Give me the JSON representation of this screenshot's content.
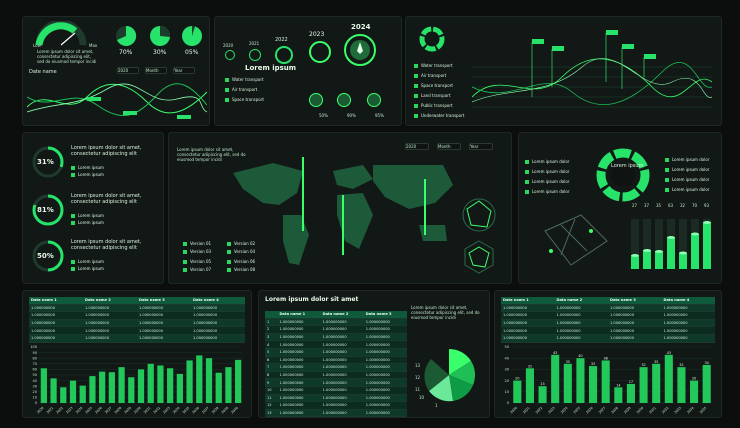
{
  "gauge": {
    "min": "Low",
    "max": "Max",
    "text": "Lorem ipsum dolor sit amet, consectetur adipiscing elit, sed do eiusmod tempor incidi"
  },
  "pies": [
    {
      "label": "70%"
    },
    {
      "label": "30%"
    },
    {
      "label": "05%"
    }
  ],
  "date_name": "Date name",
  "filters": [
    "2020",
    "Month",
    "Year"
  ],
  "years": [
    "2020",
    "2021",
    "2022",
    "2023",
    "2024"
  ],
  "lorem_ipsum": "Lorem ipsum",
  "transport_short": [
    "Water transport",
    "Air transport",
    "Space transport"
  ],
  "transport_stats": [
    {
      "label": "50%",
      "value": "50"
    },
    {
      "label": "90%",
      "value": "90"
    },
    {
      "label": "95%",
      "value": "95"
    }
  ],
  "transport_long": [
    "Water transport",
    "Air transport",
    "Space transport",
    "Land transport",
    "Public transport",
    "Underwater transport"
  ],
  "circles": [
    {
      "value": "31%",
      "title": "Lorem ipsum dolor sit amet, consectetur adipiscing elit",
      "a": "Lorem ipsum",
      "b": "Lorem ipsum",
      "pct": 0.31
    },
    {
      "value": "81%",
      "title": "Lorem ipsum dolor sit amet, consectetur adipiscing elit",
      "a": "Lorem ipsum",
      "b": "Lorem ipsum",
      "pct": 0.81
    },
    {
      "value": "50%",
      "title": "Lorem ipsum dolor sit amet, consectetur adipiscing elit",
      "a": "Lorem ipsum",
      "b": "Lorem ipsum",
      "pct": 0.5
    }
  ],
  "map_legend": [
    "Version 01",
    "Version 02",
    "Version 03",
    "Version 04",
    "Version 05",
    "Version 06",
    "Version 07",
    "Version 08"
  ],
  "ring_diagram": {
    "center": "Lorem ipsum",
    "left": [
      "Lorem ipsum dolor",
      "Lorem ipsum dolor",
      "Lorem ipsum dolor",
      "Lorem ipsum dolor"
    ],
    "right": [
      "Lorem ipsum dolor",
      "Lorem ipsum dolor",
      "Lorem ipsum dolor",
      "Lorem ipsum dolor"
    ]
  },
  "cyl_values": [
    "27",
    "37",
    "35",
    "63",
    "32",
    "70",
    "93"
  ],
  "table_headers": [
    "Data name 1",
    "Data name 2",
    "Data name 3",
    "Data name 4"
  ],
  "cell_value": "1.000000000",
  "mid_table": {
    "title": "Lorem ipsum dolor sit amet",
    "text": "Lorem ipsum dolor sit amet, consectetur adipiscing elit, sed do eiusmod tempor incidi",
    "rows": [
      "1",
      "2",
      "3",
      "4",
      "5",
      "6",
      "7",
      "8",
      "9",
      "10",
      "11",
      "12",
      "13",
      "14"
    ]
  },
  "polar_labels": [
    "1",
    "13",
    "12",
    "11",
    "10"
  ],
  "chart_data": [
    {
      "type": "bar",
      "ylim": [
        0,
        100
      ],
      "yticks": [
        "100",
        "90",
        "80",
        "70",
        "60",
        "50",
        "40",
        "30",
        "20",
        "10",
        "0"
      ],
      "categories": [
        "2020",
        "2021",
        "2022",
        "2023",
        "2024",
        "2025",
        "2026",
        "2027",
        "2028",
        "2029",
        "2030",
        "2031",
        "2032",
        "2033",
        "2034",
        "2035",
        "2036",
        "2037",
        "2038",
        "2039",
        "2040"
      ],
      "values": [
        62,
        44,
        28,
        40,
        31,
        48,
        56,
        55,
        64,
        46,
        60,
        70,
        67,
        62,
        52,
        76,
        85,
        80,
        54,
        64,
        77
      ]
    },
    {
      "type": "bar",
      "ylim": [
        0,
        50
      ],
      "yticks": [
        "50",
        "40",
        "30",
        "20",
        "10",
        "0"
      ],
      "categories": [
        "2020",
        "2021",
        "2022",
        "2023",
        "2024",
        "2025",
        "2026",
        "2027",
        "2028",
        "2029",
        "2030",
        "2031",
        "2032",
        "2033",
        "2034",
        "2035"
      ],
      "values": [
        20,
        31,
        15,
        43,
        35,
        40,
        33,
        38,
        14,
        17,
        32,
        35,
        43,
        32,
        20,
        34
      ],
      "labels": [
        "20",
        "31",
        "15",
        "43",
        "35",
        "40",
        "33",
        "38",
        "14",
        "17",
        "32",
        "35",
        "43",
        "32",
        "20",
        "34"
      ]
    }
  ]
}
